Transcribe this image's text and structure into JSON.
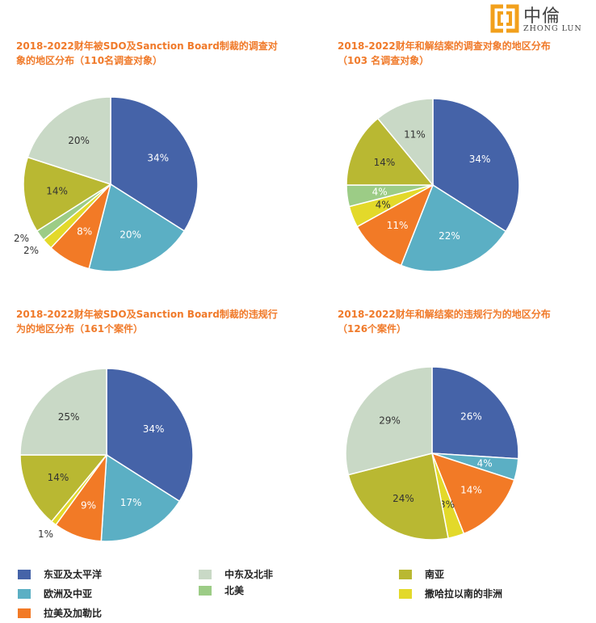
{
  "logo": {
    "cn": "中倫",
    "en": "ZHONG LUN"
  },
  "chart_data": [
    {
      "type": "pie",
      "title": "2018-2022财年被SDO及Sanction Board制裁的调查对象的地区分布（110名调查对象）",
      "slices": [
        {
          "name": "东亚及太平洋",
          "value": 34,
          "label": "34%"
        },
        {
          "name": "欧洲及中亚",
          "value": 20,
          "label": "20%"
        },
        {
          "name": "拉美及加勒比",
          "value": 8,
          "label": "8%"
        },
        {
          "name": "撒哈拉以南的非洲",
          "value": 2,
          "label": "2%"
        },
        {
          "name": "北美",
          "value": 2,
          "label": "2%"
        },
        {
          "name": "南亚",
          "value": 14,
          "label": "14%"
        },
        {
          "name": "中东及北非",
          "value": 20,
          "label": "20%"
        }
      ]
    },
    {
      "type": "pie",
      "title": "2018-2022财年和解结案的调查对象的地区分布（103 名调查对象）",
      "slices": [
        {
          "name": "东亚及太平洋",
          "value": 34,
          "label": "34%"
        },
        {
          "name": "欧洲及中亚",
          "value": 22,
          "label": "22%"
        },
        {
          "name": "拉美及加勒比",
          "value": 11,
          "label": "11%"
        },
        {
          "name": "撒哈拉以南的非洲",
          "value": 4,
          "label": "4%"
        },
        {
          "name": "北美",
          "value": 4,
          "label": "4%"
        },
        {
          "name": "南亚",
          "value": 14,
          "label": "14%"
        },
        {
          "name": "中东及北非",
          "value": 11,
          "label": "11%"
        }
      ]
    },
    {
      "type": "pie",
      "title": "2018-2022财年被SDO及Sanction Board制裁的违规行为的地区分布（161个案件）",
      "slices": [
        {
          "name": "东亚及太平洋",
          "value": 34,
          "label": "34%"
        },
        {
          "name": "欧洲及中亚",
          "value": 17,
          "label": "17%"
        },
        {
          "name": "拉美及加勒比",
          "value": 9,
          "label": "9%"
        },
        {
          "name": "撒哈拉以南的非洲",
          "value": 1,
          "label": "1%"
        },
        {
          "name": "南亚",
          "value": 14,
          "label": "14%"
        },
        {
          "name": "中东及北非",
          "value": 25,
          "label": "25%"
        }
      ]
    },
    {
      "type": "pie",
      "title": "2018-2022财年和解结案的违规行为的地区分布（126个案件）",
      "slices": [
        {
          "name": "东亚及太平洋",
          "value": 26,
          "label": "26%"
        },
        {
          "name": "欧洲及中亚",
          "value": 4,
          "label": "4%"
        },
        {
          "name": "拉美及加勒比",
          "value": 14,
          "label": "14%"
        },
        {
          "name": "撒哈拉以南的非洲",
          "value": 3,
          "label": "3%"
        },
        {
          "name": "南亚",
          "value": 24,
          "label": "24%"
        },
        {
          "name": "中东及北非",
          "value": 29,
          "label": "29%"
        }
      ]
    }
  ],
  "colors": {
    "东亚及太平洋": "#4563a8",
    "欧洲及中亚": "#5bafc4",
    "拉美及加勒比": "#f27a26",
    "撒哈拉以南的非洲": "#e3d92a",
    "北美": "#9ccc86",
    "南亚": "#b9b832",
    "中东及北非": "#c9d9c6"
  },
  "legend": [
    {
      "name": "东亚及太平洋",
      "color": "#4563a8"
    },
    {
      "name": "中东及北非",
      "color": "#c9d9c6"
    },
    {
      "name": "南亚",
      "color": "#b9b832"
    },
    {
      "name": "欧洲及中亚",
      "color": "#5bafc4"
    },
    {
      "name": "北美",
      "color": "#9ccc86"
    },
    {
      "name": "撒哈拉以南的非洲",
      "color": "#e3d92a"
    },
    {
      "name": "拉美及加勒比",
      "color": "#f27a26"
    }
  ]
}
